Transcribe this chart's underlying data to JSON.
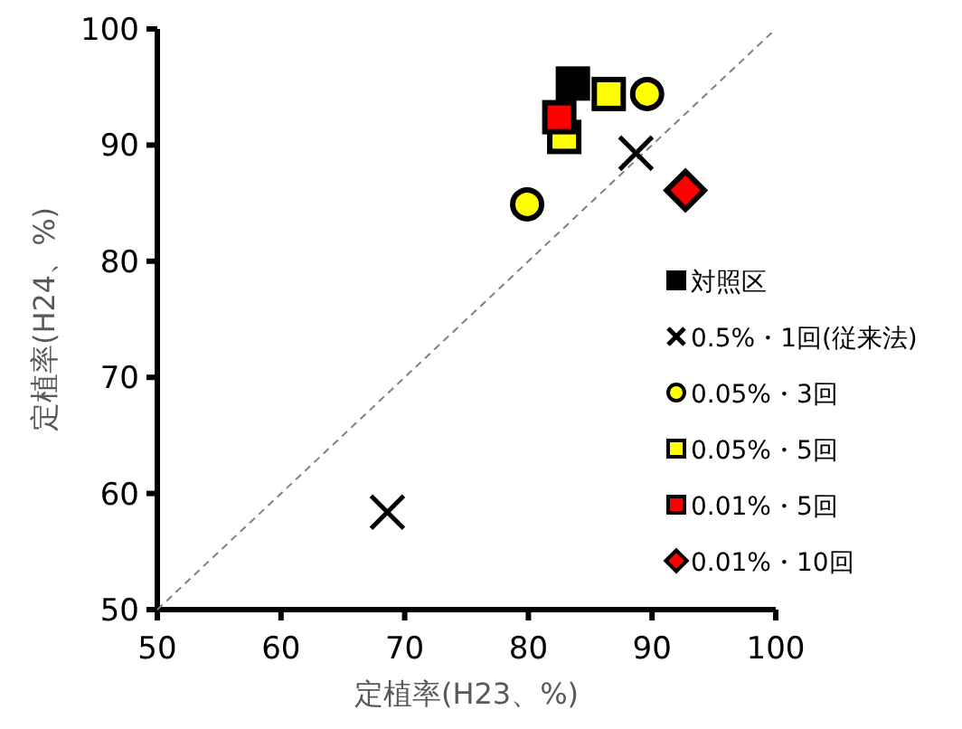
{
  "chart_data": {
    "type": "scatter",
    "xlabel": "定植率(H23、%)",
    "ylabel": "定植率(H24、%)",
    "xlim": [
      50,
      100
    ],
    "ylim": [
      50,
      100
    ],
    "xticks": [
      50,
      60,
      70,
      80,
      90,
      100
    ],
    "yticks": [
      50,
      60,
      70,
      80,
      90,
      100
    ],
    "grid": false,
    "legend": "right",
    "series": [
      {
        "name": "対照区",
        "color": "#000000",
        "marker": "square",
        "x": [
          83.6
        ],
        "values": [
          95.3
        ]
      },
      {
        "name": "0.5%・1回(従来法)",
        "color": "#000000",
        "marker": "cross",
        "x": [
          68.6,
          88.7
        ],
        "values": [
          58.4,
          89.3
        ]
      },
      {
        "name": "0.05%・3回",
        "color": "#ffff00",
        "marker": "circle",
        "x": [
          79.9,
          89.6
        ],
        "values": [
          84.9,
          94.4
        ]
      },
      {
        "name": "0.05%・5回",
        "color": "#ffff00",
        "marker": "square",
        "x": [
          86.5,
          82.9
        ],
        "values": [
          94.4,
          90.7
        ]
      },
      {
        "name": "0.01%・5回",
        "color": "#ff0000",
        "marker": "square",
        "x": [
          82.5
        ],
        "values": [
          92.4
        ]
      },
      {
        "name": "0.01%・10回",
        "color": "#ff0000",
        "marker": "diamond",
        "x": [
          92.7
        ],
        "values": [
          86.1
        ]
      },
      {
        "type": "line",
        "color": "#808080",
        "line_style": "dashed",
        "marker": "none",
        "x": [
          50,
          100
        ],
        "values": [
          50,
          100
        ]
      }
    ]
  }
}
